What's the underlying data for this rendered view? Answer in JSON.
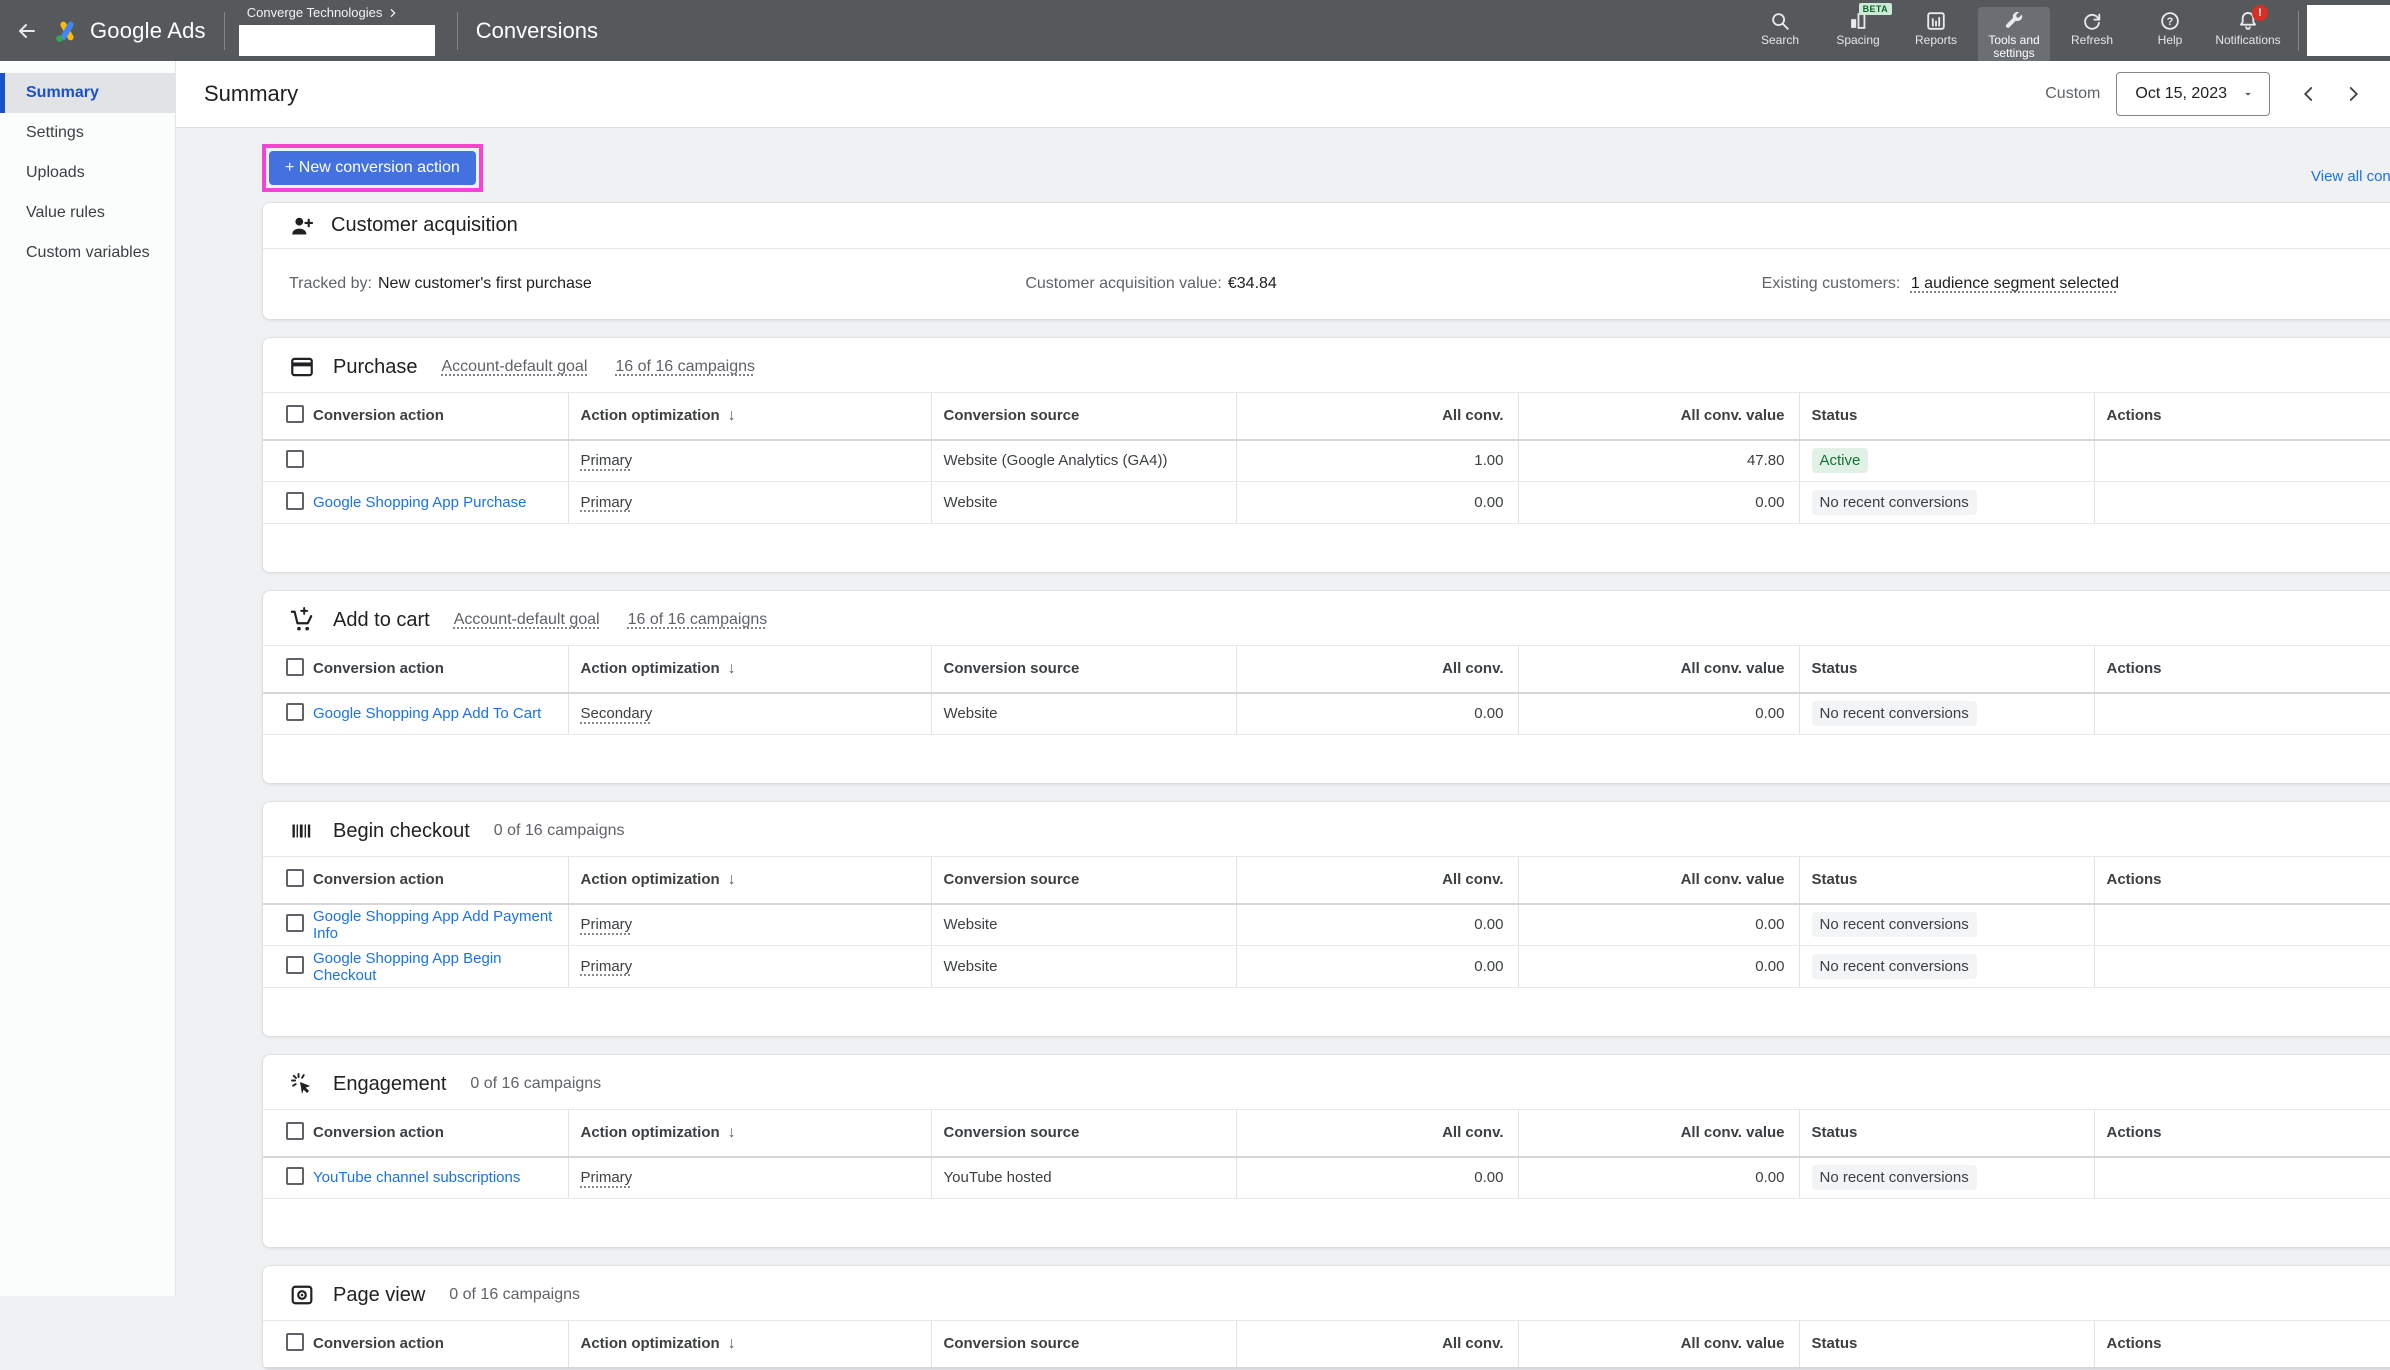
{
  "colors": {
    "accent_blue": "#1a73e8",
    "button_blue": "#4372e0",
    "highlight_magenta": "#f743d4",
    "active_green": "#137333",
    "active_green_bg": "#e2f1e6",
    "topbar_gray": "#56595c",
    "selected_nav_blue": "#1b51c8",
    "badge_red": "#d93025",
    "beta_green_bg": "#ceead6",
    "beta_green_text": "#0d652d"
  },
  "topbar": {
    "app_name": "Google Ads",
    "account": "Converge Technologies",
    "page_title": "Conversions",
    "nav": [
      {
        "id": "search",
        "label": "Search"
      },
      {
        "id": "spacing",
        "label": "Spacing",
        "beta": "BETA"
      },
      {
        "id": "reports",
        "label": "Reports"
      },
      {
        "id": "tools",
        "label": "Tools and settings",
        "selected": true
      },
      {
        "id": "refresh",
        "label": "Refresh"
      },
      {
        "id": "help",
        "label": "Help"
      },
      {
        "id": "notifications",
        "label": "Notifications",
        "alert": "!"
      }
    ]
  },
  "sidebar": {
    "items": [
      {
        "label": "Summary",
        "selected": true
      },
      {
        "label": "Settings"
      },
      {
        "label": "Uploads"
      },
      {
        "label": "Value rules"
      },
      {
        "label": "Custom variables"
      }
    ]
  },
  "header": {
    "title": "Summary",
    "date_mode": "Custom",
    "date_value": "Oct 15, 2023"
  },
  "actions": {
    "new_conversion_button": "+ New conversion action",
    "view_all_link": "View all conv"
  },
  "customer_acquisition": {
    "title": "Customer acquisition",
    "tracked_by_label": "Tracked by:",
    "tracked_by_value": "New customer's first purchase",
    "value_label": "Customer acquisition value:",
    "value": "€34.84",
    "existing_label": "Existing customers:",
    "existing_value": "1 audience segment selected"
  },
  "table": {
    "columns": [
      {
        "label": "Conversion action"
      },
      {
        "label": "Action optimization",
        "sort": "↓"
      },
      {
        "label": "Conversion source"
      },
      {
        "label": "All conv.",
        "align": "right"
      },
      {
        "label": "All conv. value",
        "align": "right"
      },
      {
        "label": "Status"
      },
      {
        "label": "Actions"
      }
    ]
  },
  "sections": [
    {
      "icon": "credit-card",
      "title": "Purchase",
      "meta": [
        {
          "text": "Account-default goal",
          "dotted": true
        },
        {
          "text": "16 of 16 campaigns",
          "dotted": true
        }
      ],
      "rows": [
        {
          "name": "",
          "optimization": "Primary",
          "source": "Website (Google Analytics (GA4))",
          "all_conv": "1.00",
          "all_conv_value": "47.80",
          "status": "Active",
          "status_kind": "active"
        },
        {
          "name": "Google Shopping App Purchase",
          "optimization": "Primary",
          "source": "Website",
          "all_conv": "0.00",
          "all_conv_value": "0.00",
          "status": "No recent conversions",
          "status_kind": "none"
        }
      ]
    },
    {
      "icon": "add-cart",
      "title": "Add to cart",
      "meta": [
        {
          "text": "Account-default goal",
          "dotted": true
        },
        {
          "text": "16 of 16 campaigns",
          "dotted": true
        }
      ],
      "rows": [
        {
          "name": "Google Shopping App Add To Cart",
          "optimization": "Secondary",
          "source": "Website",
          "all_conv": "0.00",
          "all_conv_value": "0.00",
          "status": "No recent conversions",
          "status_kind": "none"
        }
      ]
    },
    {
      "icon": "barcode",
      "title": "Begin checkout",
      "meta": [
        {
          "text": "0 of 16 campaigns",
          "dotted": false
        }
      ],
      "rows": [
        {
          "name": "Google Shopping App Add Payment Info",
          "optimization": "Primary",
          "source": "Website",
          "all_conv": "0.00",
          "all_conv_value": "0.00",
          "status": "No recent conversions",
          "status_kind": "none"
        },
        {
          "name": "Google Shopping App Begin Checkout",
          "optimization": "Primary",
          "source": "Website",
          "all_conv": "0.00",
          "all_conv_value": "0.00",
          "status": "No recent conversions",
          "status_kind": "none"
        }
      ]
    },
    {
      "icon": "ads-click",
      "title": "Engagement",
      "meta": [
        {
          "text": "0 of 16 campaigns",
          "dotted": false
        }
      ],
      "rows": [
        {
          "name": "YouTube channel subscriptions",
          "optimization": "Primary",
          "source": "YouTube hosted",
          "all_conv": "0.00",
          "all_conv_value": "0.00",
          "status": "No recent conversions",
          "status_kind": "none"
        }
      ]
    },
    {
      "icon": "page-view",
      "title": "Page view",
      "meta": [
        {
          "text": "0 of 16 campaigns",
          "dotted": false
        }
      ],
      "rows": []
    }
  ]
}
